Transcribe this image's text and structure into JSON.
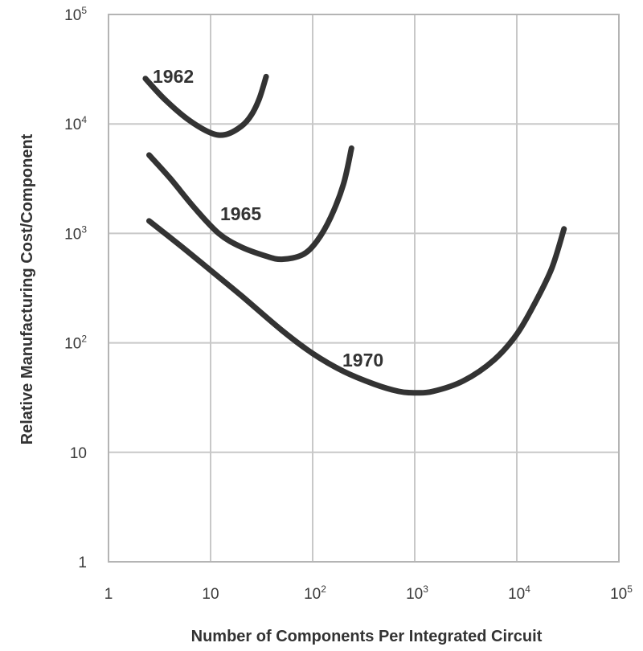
{
  "chart_data": {
    "type": "line",
    "title": "",
    "xlabel": "Number of Components Per Integrated Circuit",
    "ylabel": "Relative Manufacturing Cost/Component",
    "x_scale": "log",
    "y_scale": "log",
    "xlim": [
      1,
      100000
    ],
    "ylim": [
      1,
      100000
    ],
    "grid": true,
    "x_ticks": [
      {
        "base": "1",
        "exp": ""
      },
      {
        "base": "10",
        "exp": ""
      },
      {
        "base": "10",
        "exp": "2"
      },
      {
        "base": "10",
        "exp": "3"
      },
      {
        "base": "10",
        "exp": "4"
      },
      {
        "base": "10",
        "exp": "5"
      }
    ],
    "y_ticks": [
      {
        "base": "1",
        "exp": ""
      },
      {
        "base": "10",
        "exp": ""
      },
      {
        "base": "10",
        "exp": "2"
      },
      {
        "base": "10",
        "exp": "3"
      },
      {
        "base": "10",
        "exp": "4"
      },
      {
        "base": "10",
        "exp": "5"
      }
    ],
    "series": [
      {
        "name": "1962",
        "color": "#333333",
        "points": [
          [
            2.3,
            26000
          ],
          [
            3.5,
            17000
          ],
          [
            6,
            11000
          ],
          [
            10,
            8300
          ],
          [
            14,
            8000
          ],
          [
            20,
            9500
          ],
          [
            25,
            12000
          ],
          [
            30,
            17000
          ],
          [
            35,
            27000
          ]
        ]
      },
      {
        "name": "1965",
        "color": "#333333",
        "points": [
          [
            2.5,
            5200
          ],
          [
            4,
            3200
          ],
          [
            7,
            1700
          ],
          [
            12,
            1000
          ],
          [
            20,
            750
          ],
          [
            35,
            620
          ],
          [
            50,
            580
          ],
          [
            80,
            640
          ],
          [
            110,
            850
          ],
          [
            150,
            1400
          ],
          [
            200,
            2800
          ],
          [
            240,
            6000
          ]
        ]
      },
      {
        "name": "1970",
        "color": "#333333",
        "points": [
          [
            2.5,
            1300
          ],
          [
            5,
            780
          ],
          [
            10,
            460
          ],
          [
            20,
            270
          ],
          [
            50,
            130
          ],
          [
            100,
            80
          ],
          [
            200,
            55
          ],
          [
            400,
            42
          ],
          [
            700,
            36
          ],
          [
            1000,
            35
          ],
          [
            1500,
            36
          ],
          [
            3000,
            45
          ],
          [
            6000,
            70
          ],
          [
            10000,
            120
          ],
          [
            15000,
            230
          ],
          [
            22000,
            480
          ],
          [
            29000,
            1100
          ]
        ]
      }
    ]
  }
}
